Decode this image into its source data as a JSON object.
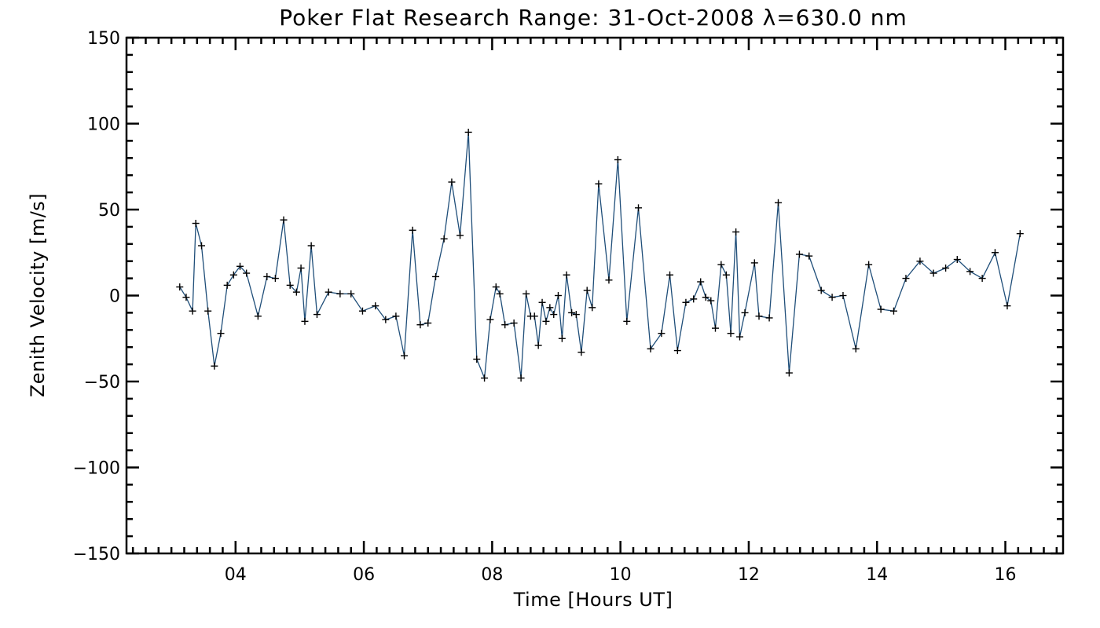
{
  "chart_data": {
    "type": "line",
    "title": "Poker Flat Research Range: 31-Oct-2008 λ=630.0 nm",
    "xlabel": "Time [Hours UT]",
    "ylabel": "Zenith Velocity [m/s]",
    "xlim": [
      2.3,
      16.9
    ],
    "ylim": [
      -150,
      150
    ],
    "xticks": [
      4,
      6,
      8,
      10,
      12,
      14,
      16
    ],
    "xtick_labels": [
      "04",
      "06",
      "08",
      "10",
      "12",
      "14",
      "16"
    ],
    "yticks": [
      -150,
      -100,
      -50,
      0,
      50,
      100,
      150
    ],
    "ytick_labels": [
      "−150",
      "−100",
      "−50",
      "0",
      "50",
      "100",
      "150"
    ],
    "grid": false,
    "marker": "plus",
    "series": [
      {
        "color": "#1f4e79",
        "marker_color": "#000000",
        "x": [
          3.13,
          3.23,
          3.33,
          3.38,
          3.47,
          3.57,
          3.67,
          3.77,
          3.87,
          3.97,
          4.07,
          4.17,
          4.35,
          4.49,
          4.62,
          4.75,
          4.85,
          4.95,
          5.02,
          5.08,
          5.18,
          5.27,
          5.45,
          5.63,
          5.8,
          5.98,
          6.18,
          6.34,
          6.5,
          6.63,
          6.76,
          6.88,
          7.0,
          7.12,
          7.25,
          7.37,
          7.5,
          7.63,
          7.76,
          7.88,
          7.97,
          8.06,
          8.12,
          8.2,
          8.34,
          8.45,
          8.53,
          8.6,
          8.66,
          8.72,
          8.78,
          8.84,
          8.9,
          8.96,
          9.03,
          9.09,
          9.16,
          9.24,
          9.31,
          9.39,
          9.48,
          9.56,
          9.66,
          9.82,
          9.96,
          10.1,
          10.28,
          10.47,
          10.64,
          10.77,
          10.89,
          11.02,
          11.14,
          11.25,
          11.33,
          11.41,
          11.48,
          11.57,
          11.65,
          11.72,
          11.8,
          11.86,
          11.94,
          12.09,
          12.16,
          12.32,
          12.46,
          12.63,
          12.79,
          12.94,
          13.13,
          13.3,
          13.47,
          13.67,
          13.87,
          14.06,
          14.26,
          14.45,
          14.67,
          14.88,
          15.07,
          15.25,
          15.45,
          15.64,
          15.84,
          16.03,
          16.23
        ],
        "y": [
          5,
          -1,
          -9,
          42,
          29,
          -9,
          -41,
          -22,
          6,
          12,
          17,
          13,
          -12,
          11,
          10,
          44,
          6,
          2,
          16,
          -15,
          29,
          -11,
          2,
          1,
          1,
          -9,
          -6,
          -14,
          -12,
          -35,
          38,
          -17,
          -16,
          11,
          33,
          66,
          35,
          95,
          -37,
          -48,
          -14,
          5,
          1,
          -17,
          -16,
          -48,
          1,
          -12,
          -12,
          -29,
          -4,
          -15,
          -7,
          -11,
          0,
          -25,
          12,
          -10,
          -11,
          -33,
          3,
          -7,
          65,
          9,
          79,
          -15,
          51,
          -31,
          -22,
          12,
          -32,
          -4,
          -2,
          8,
          -1,
          -3,
          -19,
          18,
          12,
          -22,
          37,
          -24,
          -10,
          19,
          -12,
          -13,
          54,
          -45,
          24,
          23,
          3,
          -1,
          0,
          -31,
          18,
          -8,
          -9,
          10,
          20,
          13,
          16,
          21,
          14,
          10,
          25,
          -6,
          36
        ]
      }
    ]
  }
}
